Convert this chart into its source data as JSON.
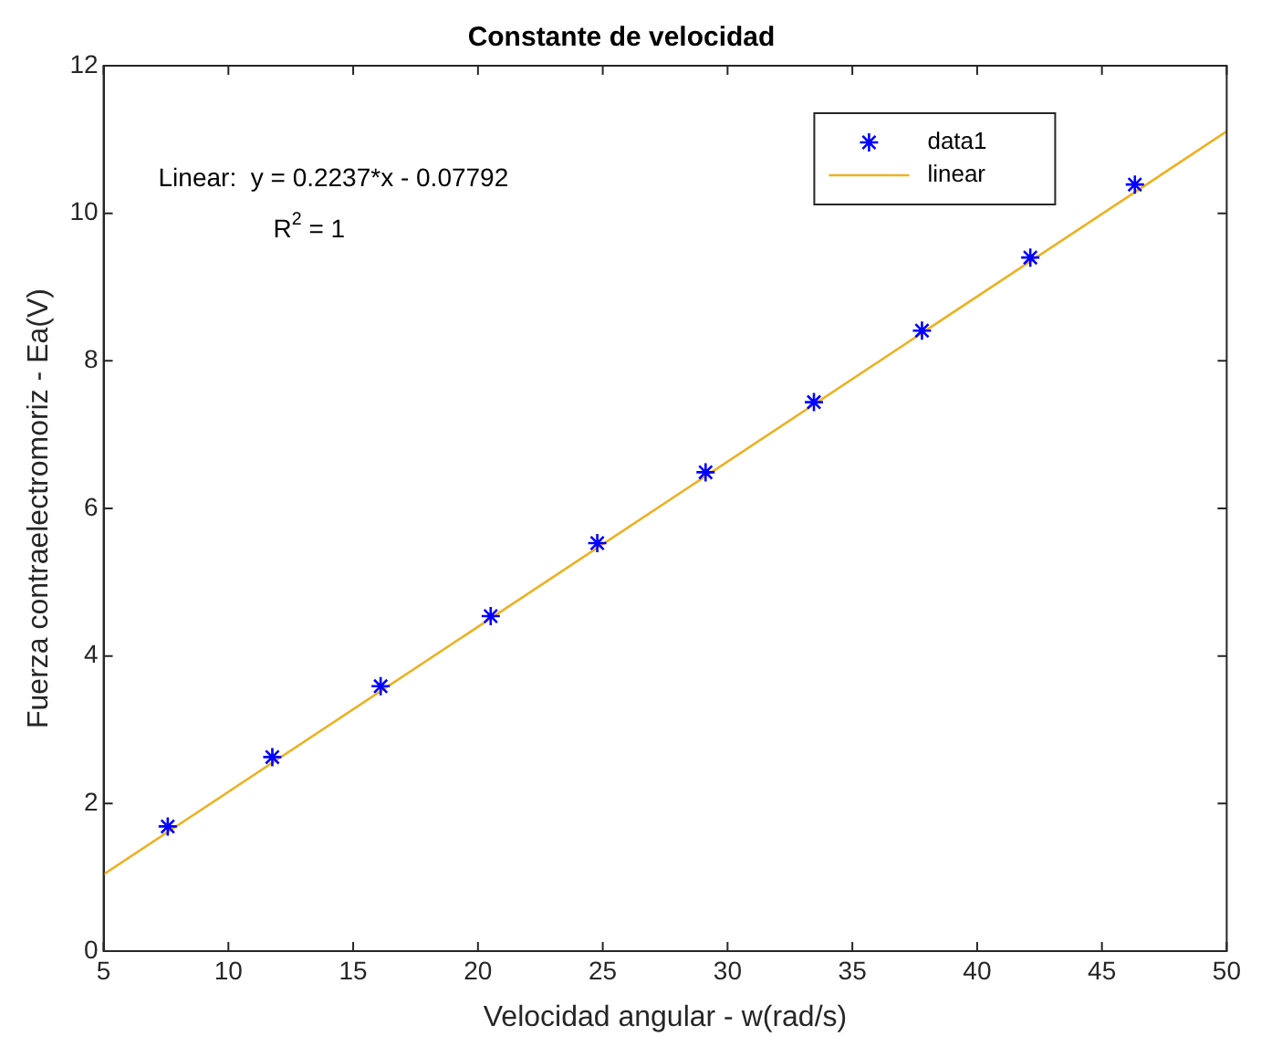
{
  "chart_data": {
    "type": "scatter",
    "title": "Constante de velocidad",
    "xlabel": "Velocidad angular - w(rad/s)",
    "ylabel": "Fuerza contraelectromoriz - Ea(V)",
    "x": [
      7.57,
      11.76,
      16.1,
      20.51,
      24.78,
      29.12,
      33.46,
      37.79,
      42.13,
      46.32
    ],
    "series": [
      {
        "name": "data1",
        "type": "scatter",
        "color": "#0000ff",
        "marker": "cross",
        "values": [
          1.69,
          2.63,
          3.59,
          4.54,
          5.53,
          6.49,
          7.44,
          8.41,
          9.4,
          10.39
        ]
      },
      {
        "name": "linear",
        "type": "line",
        "color": "#edb120",
        "marker": "none",
        "x": [
          5,
          50
        ],
        "values": [
          1.04,
          11.11
        ]
      }
    ],
    "xlim": [
      5,
      50
    ],
    "xticks": [
      5,
      10,
      15,
      20,
      25,
      30,
      35,
      40,
      45,
      50
    ],
    "ylim": [
      0,
      12
    ],
    "yticks": [
      0,
      2,
      4,
      6,
      8,
      10,
      12
    ],
    "grid": false,
    "legend": "top right",
    "annotations": [
      "Linear:  y = 0.2237*x - 0.07792",
      "R$^{2}$ = 1"
    ]
  }
}
